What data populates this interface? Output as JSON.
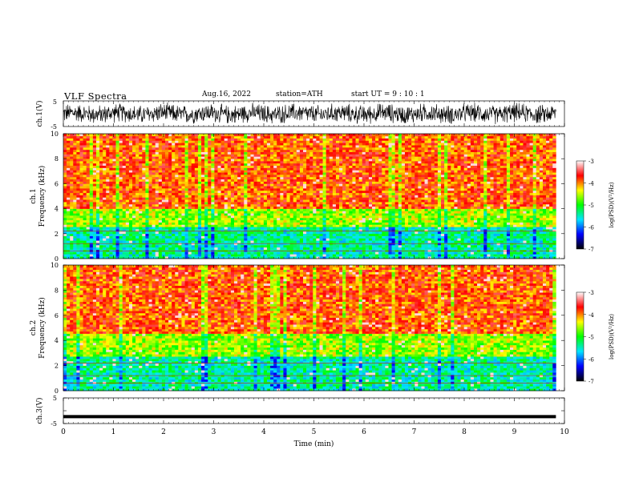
{
  "header": {
    "title": "VLF  Spectra",
    "date": "Aug.16, 2022",
    "station": "station=ATH",
    "start": "start  UT  =    9  : 10 : 1"
  },
  "chart_data": [
    {
      "type": "line",
      "panel": "ch1-waveform",
      "ylabel": "ch.1(V)",
      "ylim": [
        -5,
        5
      ],
      "yticks": [
        "5",
        "-5"
      ],
      "xlim": [
        0,
        10
      ],
      "trace": "dense noisy waveform, roughly -2.5 to 2.5 V",
      "color": "#000000"
    },
    {
      "type": "heatmap",
      "panel": "ch1-spectrogram",
      "ylabel": "ch.1\nFrequency  (kHz)",
      "ylim": [
        0,
        10
      ],
      "yticks": [
        "0",
        "2",
        "4",
        "6",
        "8",
        "10"
      ],
      "xlim": [
        0,
        10
      ],
      "colorbar": {
        "label": "log(PSD)(V²/Hz)",
        "range": [
          -7,
          -3
        ],
        "ticks": [
          "-3",
          "-4",
          "-5",
          "-6",
          "-7"
        ],
        "colors": [
          "#000000",
          "#0000ff",
          "#00e5ff",
          "#00ff00",
          "#ffff00",
          "#ff0000",
          "#ffffff"
        ]
      },
      "bands": [
        {
          "from_khz": 0,
          "to_khz": 2.5,
          "level": "green/cyan (about -5.5)"
        },
        {
          "from_khz": 2.5,
          "to_khz": 4,
          "level": "yellow/green (about -4.5)"
        },
        {
          "from_khz": 4,
          "to_khz": 10,
          "level": "red (about -3.8)"
        }
      ]
    },
    {
      "type": "heatmap",
      "panel": "ch2-spectrogram",
      "ylabel": "ch.2\nFrequency  (kHz)",
      "ylim": [
        0,
        10
      ],
      "yticks": [
        "0",
        "2",
        "4",
        "6",
        "8",
        "10"
      ],
      "xlim": [
        0,
        10
      ],
      "colorbar": {
        "label": "log(PSD)(V²/Hz)",
        "range": [
          -7,
          -3
        ],
        "ticks": [
          "-3",
          "-4",
          "-5",
          "-6",
          "-7"
        ],
        "colors": [
          "#000000",
          "#0000ff",
          "#00e5ff",
          "#00ff00",
          "#ffff00",
          "#ff0000",
          "#ffffff"
        ]
      },
      "bands": [
        {
          "from_khz": 0,
          "to_khz": 2.8,
          "level": "green/cyan (about -5.5)"
        },
        {
          "from_khz": 2.8,
          "to_khz": 4.5,
          "level": "yellow/green (about -4.5)"
        },
        {
          "from_khz": 4.5,
          "to_khz": 10,
          "level": "red (about -3.8)"
        }
      ]
    },
    {
      "type": "line",
      "panel": "ch3-waveform",
      "ylabel": "ch.3(V)",
      "ylim": [
        -5,
        5
      ],
      "yticks": [
        "5",
        "0",
        "-5"
      ],
      "xlim": [
        0,
        10
      ],
      "trace": "flat thick trace near -2.5 V",
      "color": "#000000"
    }
  ],
  "xaxis": {
    "label": "Time  (min)",
    "ticks": [
      "0",
      "1",
      "2",
      "3",
      "4",
      "5",
      "6",
      "7",
      "8",
      "9",
      "10"
    ]
  }
}
